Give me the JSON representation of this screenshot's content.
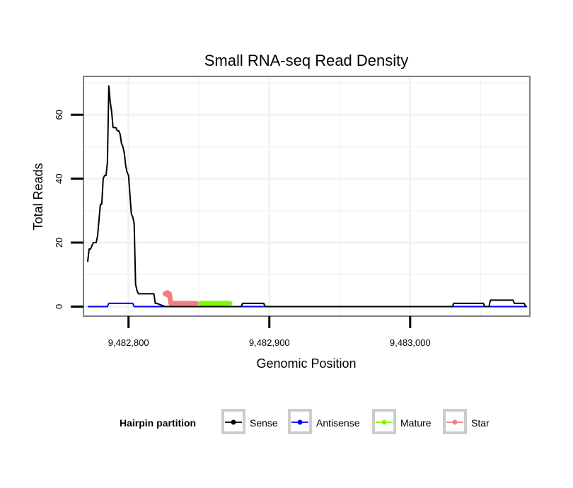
{
  "chart_data": {
    "type": "line",
    "title": "Small RNA-seq Read Density",
    "xlabel": "Genomic Position",
    "ylabel": "Total Reads",
    "xlim": [
      9482768,
      9483085
    ],
    "ylim": [
      -3,
      72
    ],
    "x_ticks": [
      9482800,
      9482900,
      9483000
    ],
    "x_tick_labels": [
      "9,482,800",
      "9,482,900",
      "9,483,000"
    ],
    "y_ticks": [
      0,
      20,
      40,
      60
    ],
    "y_tick_labels": [
      "0",
      "20",
      "40",
      "60"
    ],
    "grid": true,
    "legend": {
      "title": "Hairpin partition",
      "position": "bottom",
      "entries": [
        {
          "name": "Sense",
          "color": "#000000"
        },
        {
          "name": "Antisense",
          "color": "#0000ff"
        },
        {
          "name": "Mature",
          "color": "#7cfc00"
        },
        {
          "name": "Star",
          "color": "#f08080"
        }
      ]
    },
    "series": [
      {
        "name": "Sense",
        "color": "#000000",
        "points": [
          [
            9482771,
            14
          ],
          [
            9482772,
            18
          ],
          [
            9482773,
            18
          ],
          [
            9482774,
            19
          ],
          [
            9482775,
            20
          ],
          [
            9482776,
            20
          ],
          [
            9482777,
            20
          ],
          [
            9482778,
            22
          ],
          [
            9482779,
            27
          ],
          [
            9482780,
            32
          ],
          [
            9482781,
            32
          ],
          [
            9482782,
            40
          ],
          [
            9482783,
            41
          ],
          [
            9482784,
            41
          ],
          [
            9482785,
            45
          ],
          [
            9482786,
            69
          ],
          [
            9482787,
            64
          ],
          [
            9482788,
            61
          ],
          [
            9482789,
            56
          ],
          [
            9482790,
            56
          ],
          [
            9482791,
            56
          ],
          [
            9482792,
            55
          ],
          [
            9482793,
            55
          ],
          [
            9482794,
            54
          ],
          [
            9482795,
            51
          ],
          [
            9482796,
            50
          ],
          [
            9482797,
            48
          ],
          [
            9482798,
            44
          ],
          [
            9482799,
            42
          ],
          [
            9482800,
            41
          ],
          [
            9482801,
            35
          ],
          [
            9482802,
            29
          ],
          [
            9482803,
            28
          ],
          [
            9482804,
            26
          ],
          [
            9482805,
            7
          ],
          [
            9482806,
            5
          ],
          [
            9482807,
            4
          ],
          [
            9482808,
            4
          ],
          [
            9482818,
            4
          ],
          [
            9482819,
            1
          ],
          [
            9482820,
            1
          ],
          [
            9482826,
            0
          ],
          [
            9482880,
            0
          ],
          [
            9482881,
            1
          ],
          [
            9482896,
            1
          ],
          [
            9482897,
            0
          ],
          [
            9483030,
            0
          ],
          [
            9483031,
            1
          ],
          [
            9483052,
            1
          ],
          [
            9483053,
            0
          ],
          [
            9483056,
            0
          ],
          [
            9483057,
            2
          ],
          [
            9483073,
            2
          ],
          [
            9483074,
            1
          ],
          [
            9483081,
            1
          ],
          [
            9483082,
            0
          ],
          [
            9483083,
            0
          ]
        ]
      },
      {
        "name": "Antisense",
        "color": "#0000ff",
        "points": [
          [
            9482771,
            0
          ],
          [
            9482785,
            0
          ],
          [
            9482786,
            1
          ],
          [
            9482803,
            1
          ],
          [
            9482804,
            0
          ],
          [
            9483083,
            0
          ]
        ]
      },
      {
        "name": "Mature",
        "color": "#7cfc00",
        "points": [
          [
            9482851,
            1
          ],
          [
            9482872,
            1
          ]
        ]
      },
      {
        "name": "Star",
        "color": "#f08080",
        "points": [
          [
            9482826,
            4
          ],
          [
            9482829,
            4
          ],
          [
            9482830,
            1
          ],
          [
            9482848,
            1
          ]
        ]
      }
    ]
  }
}
